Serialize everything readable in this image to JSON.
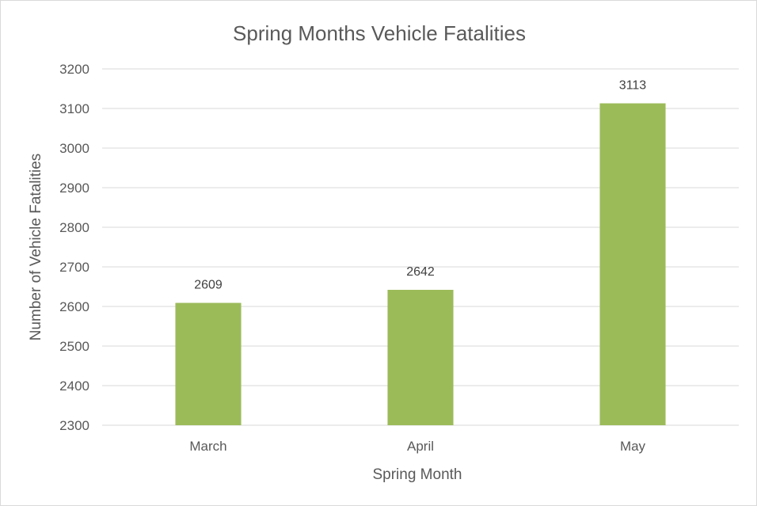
{
  "chart_data": {
    "type": "bar",
    "title": "Spring Months Vehicle Fatalities",
    "xlabel": "Spring Month",
    "ylabel": "Number of Vehicle Fatalities",
    "categories": [
      "March",
      "April",
      "May"
    ],
    "values": [
      2609,
      2642,
      3113
    ],
    "data_labels": [
      "2609",
      "2642",
      "3113"
    ],
    "ylim": [
      2300,
      3200
    ],
    "yticks": [
      2300,
      2400,
      2500,
      2600,
      2700,
      2800,
      2900,
      3000,
      3100,
      3200
    ],
    "ytick_labels": [
      "2300",
      "2400",
      "2500",
      "2600",
      "2700",
      "2800",
      "2900",
      "3000",
      "3100",
      "3200"
    ],
    "grid": true,
    "legend": "none",
    "bar_color": "#9bbb59",
    "grid_color": "#d9d9d9",
    "text_color": "#595959"
  }
}
